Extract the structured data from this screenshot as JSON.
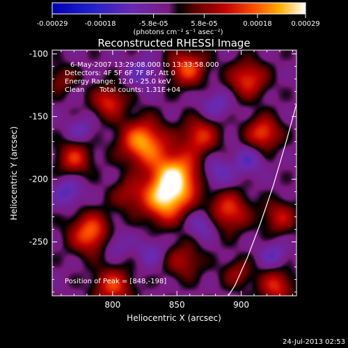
{
  "chart_data": {
    "type": "heatmap",
    "title": "Reconstructed RHESSI Image",
    "xlabel": "Heliocentric X (arcsec)",
    "ylabel": "Heliocentric Y (arcsec)",
    "xlim": [
      753,
      943
    ],
    "ylim": [
      -293,
      -97
    ],
    "x_ticks": [
      800,
      850,
      900
    ],
    "y_ticks": [
      -100,
      -150,
      -200,
      -250
    ],
    "colorbar": {
      "min": -0.00029,
      "max": 0.00029,
      "tick_values": [
        -0.00029,
        -0.00018,
        -5.8e-05,
        5.8e-05,
        0.00018,
        0.00029
      ],
      "tick_labels": [
        "-0.00029",
        "-0.00018",
        "-5.8e-05",
        "5.8e-05",
        "0.00018",
        "0.00029"
      ],
      "unit_label": "(photons cm⁻² s⁻¹ asec⁻²)"
    },
    "annotations": {
      "time_range": "6-May-2007 13:29:08.000 to 13:33:58.000",
      "detectors": "Detectors: 4F 5F 6F 7F 8F, Att 0",
      "energy_range": "Energy Range: 12.0 - 25.0 keV",
      "method": "Clean",
      "total_counts": "Total counts: 1.31E+04",
      "peak_position": "Position of Peak = [848,-198]"
    },
    "peak": [
      848,
      -198
    ],
    "limb_curve": [
      [
        943,
        -140
      ],
      [
        935,
        -170
      ],
      [
        925,
        -205
      ],
      [
        915,
        -235
      ],
      [
        905,
        -262
      ],
      [
        895,
        -285
      ],
      [
        890,
        -293
      ]
    ],
    "sources": [
      {
        "x": 848,
        "y": -198,
        "amp": 1.0,
        "sigma": 14
      },
      {
        "x": 840,
        "y": -218,
        "amp": 0.75,
        "sigma": 12
      },
      {
        "x": 823,
        "y": -170,
        "amp": 0.85,
        "sigma": 12
      },
      {
        "x": 868,
        "y": -165,
        "amp": 0.55,
        "sigma": 10
      },
      {
        "x": 783,
        "y": -243,
        "amp": 0.75,
        "sigma": 11
      },
      {
        "x": 770,
        "y": -183,
        "amp": 0.55,
        "sigma": 9
      },
      {
        "x": 797,
        "y": -138,
        "amp": 0.55,
        "sigma": 9
      },
      {
        "x": 858,
        "y": -111,
        "amp": 0.65,
        "sigma": 10
      },
      {
        "x": 905,
        "y": -120,
        "amp": 0.6,
        "sigma": 10
      },
      {
        "x": 917,
        "y": -163,
        "amp": 0.65,
        "sigma": 9
      },
      {
        "x": 890,
        "y": -225,
        "amp": 0.6,
        "sigma": 11
      },
      {
        "x": 930,
        "y": -230,
        "amp": 0.45,
        "sigma": 9
      },
      {
        "x": 927,
        "y": -285,
        "amp": 0.55,
        "sigma": 9
      },
      {
        "x": 800,
        "y": -285,
        "amp": 0.6,
        "sigma": 10
      },
      {
        "x": 855,
        "y": -265,
        "amp": 0.4,
        "sigma": 10
      },
      {
        "x": 897,
        "y": -275,
        "amp": 0.35,
        "sigma": 8
      },
      {
        "x": 812,
        "y": -212,
        "amp": 0.35,
        "sigma": 9
      },
      {
        "x": 760,
        "y": -120,
        "amp": 0.3,
        "sigma": 8
      },
      {
        "x": 880,
        "y": -195,
        "amp": -0.35,
        "sigma": 9
      },
      {
        "x": 800,
        "y": -250,
        "amp": -0.3,
        "sigma": 8
      },
      {
        "x": 765,
        "y": -210,
        "amp": -0.35,
        "sigma": 8
      },
      {
        "x": 823,
        "y": -115,
        "amp": -0.3,
        "sigma": 8
      },
      {
        "x": 870,
        "y": -235,
        "amp": -0.35,
        "sigma": 8
      },
      {
        "x": 905,
        "y": -185,
        "amp": -0.3,
        "sigma": 8
      },
      {
        "x": 880,
        "y": -140,
        "amp": -0.3,
        "sigma": 8
      },
      {
        "x": 830,
        "y": -258,
        "amp": -0.25,
        "sigma": 8
      },
      {
        "x": 925,
        "y": -260,
        "amp": -0.3,
        "sigma": 7
      },
      {
        "x": 775,
        "y": -160,
        "amp": -0.25,
        "sigma": 7
      }
    ],
    "background_level": -0.1
  },
  "footer": {
    "date": "24-Jul-2013 02:53"
  }
}
